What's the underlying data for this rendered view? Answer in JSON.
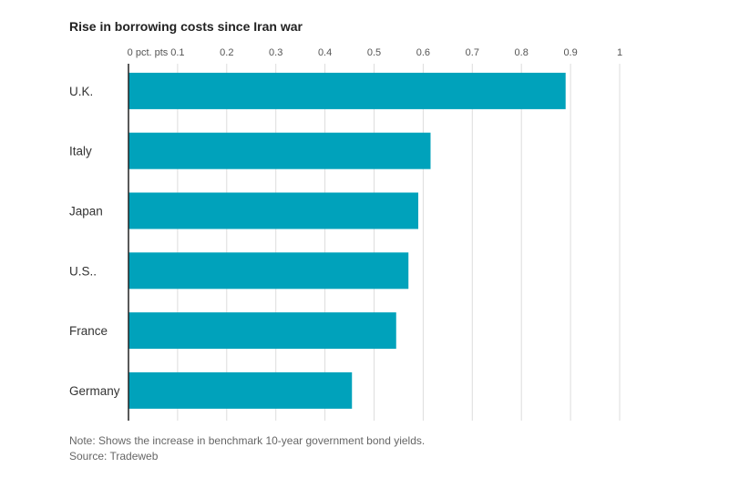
{
  "title": "Rise in borrowing costs since Iran war",
  "note": "Note: Shows the increase in benchmark 10-year government bond yields.",
  "source": "Source: Tradeweb",
  "colors": {
    "bar": "#00a2bb",
    "gridline": "#dddddd",
    "axis": "#222222"
  },
  "chart_data": {
    "type": "bar",
    "orientation": "horizontal",
    "title": "Rise in borrowing costs since Iran war",
    "categories": [
      "U.K.",
      "Italy",
      "Japan",
      "U.S..",
      "France",
      "Germany"
    ],
    "values": [
      0.89,
      0.615,
      0.59,
      0.57,
      0.545,
      0.455
    ],
    "xlim": [
      0,
      1
    ],
    "xticks": [
      0,
      0.1,
      0.2,
      0.3,
      0.4,
      0.5,
      0.6,
      0.7,
      0.8,
      0.9,
      1
    ],
    "xtick_labels": [
      "0 pct. pts",
      "0.1",
      "0.2",
      "0.3",
      "0.4",
      "0.5",
      "0.6",
      "0.7",
      "0.8",
      "0.9",
      "1"
    ],
    "xaxis_position": "top",
    "grid": true,
    "legend": "none"
  }
}
